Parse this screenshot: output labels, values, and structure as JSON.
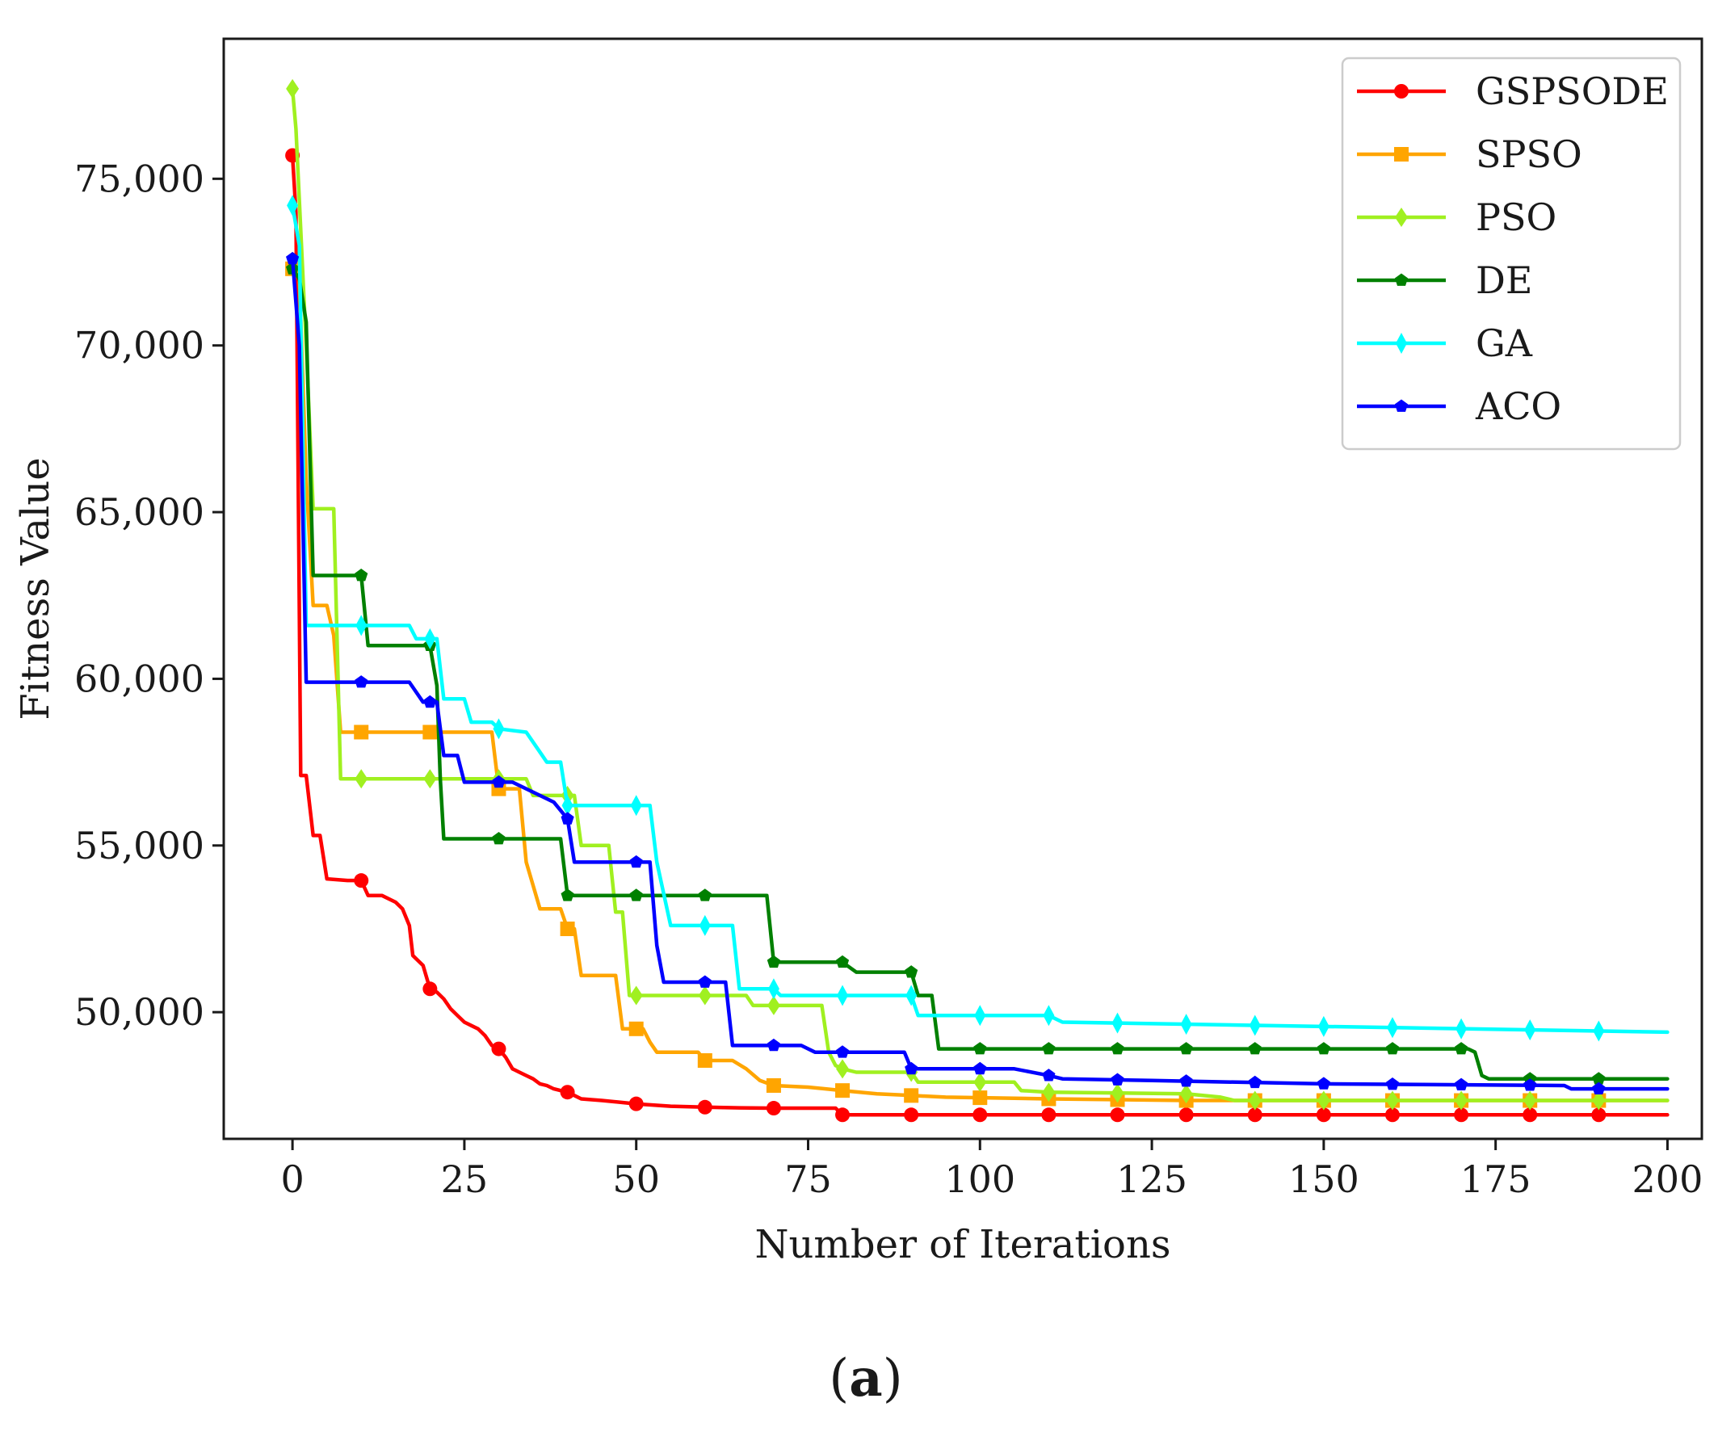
{
  "chart_data": {
    "type": "line",
    "title": "",
    "xlabel": "Number of Iterations",
    "ylabel": "Fitness Value",
    "xlim": [
      -10,
      205
    ],
    "ylim": [
      46200,
      79200
    ],
    "xticks": [
      0,
      25,
      50,
      75,
      100,
      125,
      150,
      175,
      200
    ],
    "xtick_labels": [
      "0",
      "25",
      "50",
      "75",
      "100",
      "125",
      "150",
      "175",
      "200"
    ],
    "yticks": [
      50000,
      55000,
      60000,
      65000,
      70000,
      75000
    ],
    "ytick_labels": [
      "50,000",
      "55,000",
      "60,000",
      "65,000",
      "70,000",
      "75,000"
    ],
    "grid": false,
    "legend_position": "top-right",
    "panel_label": {
      "open": "(",
      "letter": "a",
      "close": ")"
    },
    "series": [
      {
        "name": "GSPSODE",
        "color": "#ff0000",
        "marker": "circle",
        "points": [
          [
            0,
            75700
          ],
          [
            0.5,
            74000
          ],
          [
            1,
            62000
          ],
          [
            1.2,
            57100
          ],
          [
            2,
            57100
          ],
          [
            3,
            55300
          ],
          [
            4,
            55300
          ],
          [
            5,
            54000
          ],
          [
            8,
            53950
          ],
          [
            10,
            53950
          ],
          [
            11,
            53500
          ],
          [
            13,
            53500
          ],
          [
            15,
            53300
          ],
          [
            16,
            53100
          ],
          [
            17,
            52600
          ],
          [
            17.5,
            51700
          ],
          [
            18,
            51600
          ],
          [
            19,
            51400
          ],
          [
            20,
            50700
          ],
          [
            21,
            50600
          ],
          [
            22,
            50400
          ],
          [
            23,
            50100
          ],
          [
            24,
            49900
          ],
          [
            25,
            49700
          ],
          [
            26,
            49600
          ],
          [
            27,
            49500
          ],
          [
            28,
            49300
          ],
          [
            29,
            49000
          ],
          [
            30,
            48900
          ],
          [
            31,
            48650
          ],
          [
            32,
            48300
          ],
          [
            33,
            48200
          ],
          [
            34,
            48100
          ],
          [
            35,
            48000
          ],
          [
            36,
            47850
          ],
          [
            37,
            47800
          ],
          [
            38,
            47700
          ],
          [
            39,
            47650
          ],
          [
            40,
            47600
          ],
          [
            41,
            47500
          ],
          [
            42,
            47400
          ],
          [
            45,
            47350
          ],
          [
            50,
            47250
          ],
          [
            55,
            47180
          ],
          [
            60,
            47150
          ],
          [
            65,
            47130
          ],
          [
            70,
            47120
          ],
          [
            79,
            47120
          ],
          [
            80,
            46920
          ],
          [
            100,
            46920
          ],
          [
            200,
            46920
          ]
        ],
        "markers_x": [
          0,
          10,
          20,
          30,
          40,
          50,
          60,
          70,
          80,
          90,
          100,
          110,
          120,
          130,
          140,
          150,
          160,
          170,
          180,
          190
        ]
      },
      {
        "name": "SPSO",
        "color": "#ffa500",
        "marker": "square",
        "points": [
          [
            0,
            72300
          ],
          [
            1,
            72000
          ],
          [
            2,
            66000
          ],
          [
            3,
            62200
          ],
          [
            5,
            62200
          ],
          [
            6,
            61300
          ],
          [
            7,
            58400
          ],
          [
            29,
            58400
          ],
          [
            30,
            56700
          ],
          [
            33,
            56700
          ],
          [
            34,
            54500
          ],
          [
            35,
            53800
          ],
          [
            36,
            53100
          ],
          [
            39,
            53100
          ],
          [
            40,
            52500
          ],
          [
            41,
            52500
          ],
          [
            42,
            51100
          ],
          [
            47,
            51100
          ],
          [
            48,
            49500
          ],
          [
            51,
            49500
          ],
          [
            52,
            49100
          ],
          [
            53,
            48800
          ],
          [
            59,
            48800
          ],
          [
            60,
            48550
          ],
          [
            64,
            48550
          ],
          [
            66,
            48300
          ],
          [
            68,
            47950
          ],
          [
            70,
            47800
          ],
          [
            75,
            47750
          ],
          [
            80,
            47650
          ],
          [
            85,
            47550
          ],
          [
            90,
            47500
          ],
          [
            95,
            47450
          ],
          [
            110,
            47400
          ],
          [
            130,
            47350
          ],
          [
            200,
            47350
          ]
        ],
        "markers_x": [
          0,
          10,
          20,
          30,
          40,
          50,
          60,
          70,
          80,
          90,
          100,
          110,
          120,
          130,
          140,
          150,
          160,
          170,
          180,
          190
        ]
      },
      {
        "name": "PSO",
        "color": "#a0f020",
        "marker": "diamond",
        "points": [
          [
            0,
            77700
          ],
          [
            0.5,
            76500
          ],
          [
            2,
            70000
          ],
          [
            3,
            65100
          ],
          [
            6,
            65100
          ],
          [
            7,
            57000
          ],
          [
            34,
            57000
          ],
          [
            35,
            56500
          ],
          [
            41,
            56500
          ],
          [
            42,
            55000
          ],
          [
            46,
            55000
          ],
          [
            47,
            53000
          ],
          [
            48,
            53000
          ],
          [
            49,
            50500
          ],
          [
            66,
            50500
          ],
          [
            67,
            50200
          ],
          [
            77,
            50200
          ],
          [
            78,
            48800
          ],
          [
            79,
            48400
          ],
          [
            80,
            48300
          ],
          [
            82,
            48200
          ],
          [
            90,
            48200
          ],
          [
            91,
            47900
          ],
          [
            105,
            47900
          ],
          [
            106,
            47650
          ],
          [
            110,
            47600
          ],
          [
            130,
            47550
          ],
          [
            135,
            47450
          ],
          [
            137,
            47350
          ],
          [
            200,
            47350
          ]
        ],
        "markers_x": [
          0,
          10,
          20,
          30,
          40,
          50,
          60,
          70,
          80,
          90,
          100,
          110,
          120,
          130,
          140,
          150,
          160,
          170,
          180,
          190
        ]
      },
      {
        "name": "DE",
        "color": "#008000",
        "marker": "pentagon",
        "points": [
          [
            0,
            72300
          ],
          [
            1,
            72000
          ],
          [
            2,
            70700
          ],
          [
            3,
            63100
          ],
          [
            10,
            63100
          ],
          [
            11,
            61000
          ],
          [
            20,
            61000
          ],
          [
            21,
            59800
          ],
          [
            21.5,
            57000
          ],
          [
            22,
            55200
          ],
          [
            29,
            55200
          ],
          [
            30,
            55200
          ],
          [
            39,
            55200
          ],
          [
            40,
            53500
          ],
          [
            68,
            53500
          ],
          [
            69,
            53500
          ],
          [
            70,
            51500
          ],
          [
            80,
            51500
          ],
          [
            82,
            51200
          ],
          [
            90,
            51200
          ],
          [
            91,
            50500
          ],
          [
            93,
            50500
          ],
          [
            94,
            48900
          ],
          [
            171,
            48900
          ],
          [
            172,
            48800
          ],
          [
            173,
            48100
          ],
          [
            174,
            48000
          ],
          [
            200,
            48000
          ]
        ],
        "markers_x": [
          0,
          10,
          20,
          30,
          40,
          50,
          60,
          70,
          80,
          90,
          100,
          110,
          120,
          130,
          140,
          150,
          160,
          170,
          180,
          190
        ]
      },
      {
        "name": "GA",
        "color": "#00ffff",
        "marker": "thin_diamond",
        "points": [
          [
            0,
            74200
          ],
          [
            1,
            73000
          ],
          [
            2,
            61600
          ],
          [
            17,
            61600
          ],
          [
            18,
            61200
          ],
          [
            21,
            61200
          ],
          [
            22,
            59400
          ],
          [
            25,
            59400
          ],
          [
            26,
            58700
          ],
          [
            29,
            58700
          ],
          [
            30,
            58500
          ],
          [
            34,
            58400
          ],
          [
            36,
            57800
          ],
          [
            37,
            57500
          ],
          [
            39,
            57500
          ],
          [
            40,
            56200
          ],
          [
            52,
            56200
          ],
          [
            53,
            54500
          ],
          [
            55,
            52600
          ],
          [
            64,
            52600
          ],
          [
            65,
            50700
          ],
          [
            70,
            50700
          ],
          [
            71,
            50500
          ],
          [
            90,
            50500
          ],
          [
            91,
            49900
          ],
          [
            110,
            49900
          ],
          [
            112,
            49700
          ],
          [
            200,
            49400
          ]
        ],
        "markers_x": [
          0,
          10,
          20,
          30,
          40,
          50,
          60,
          70,
          80,
          90,
          100,
          110,
          120,
          130,
          140,
          150,
          160,
          170,
          180,
          190
        ]
      },
      {
        "name": "ACO",
        "color": "#0000ff",
        "marker": "pentagon",
        "points": [
          [
            0,
            72600
          ],
          [
            1,
            70000
          ],
          [
            2,
            59900
          ],
          [
            17,
            59900
          ],
          [
            19,
            59300
          ],
          [
            21,
            59300
          ],
          [
            22,
            57700
          ],
          [
            24,
            57700
          ],
          [
            25,
            56900
          ],
          [
            32,
            56900
          ],
          [
            34,
            56700
          ],
          [
            38,
            56300
          ],
          [
            40,
            55800
          ],
          [
            41,
            54500
          ],
          [
            51,
            54500
          ],
          [
            52,
            54500
          ],
          [
            53,
            52000
          ],
          [
            54,
            50900
          ],
          [
            63,
            50900
          ],
          [
            64,
            49000
          ],
          [
            74,
            49000
          ],
          [
            76,
            48800
          ],
          [
            89,
            48800
          ],
          [
            90,
            48300
          ],
          [
            105,
            48300
          ],
          [
            110,
            48100
          ],
          [
            112,
            48000
          ],
          [
            125,
            47950
          ],
          [
            150,
            47850
          ],
          [
            185,
            47800
          ],
          [
            186,
            47700
          ],
          [
            200,
            47700
          ]
        ],
        "markers_x": [
          0,
          10,
          20,
          30,
          40,
          50,
          60,
          70,
          80,
          90,
          100,
          110,
          120,
          130,
          140,
          150,
          160,
          170,
          180,
          190
        ]
      }
    ]
  }
}
